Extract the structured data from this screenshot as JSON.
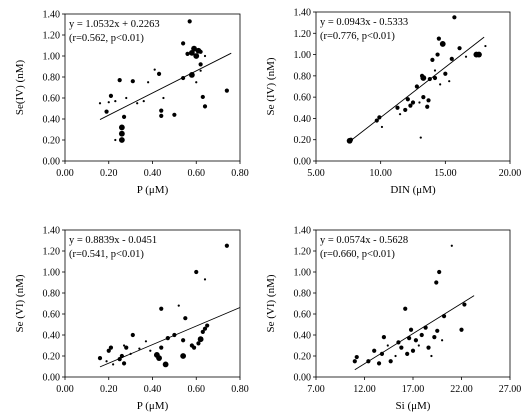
{
  "chart_data": [
    {
      "type": "scatter",
      "xlabel": "P (μM)",
      "ylabel": "Se(IV) (nM)",
      "xlim": [
        0.0,
        0.8
      ],
      "ylim": [
        0.0,
        1.4
      ],
      "xticks": [
        "0.00",
        "0.20",
        "0.40",
        "0.60",
        "0.80"
      ],
      "yticks": [
        "0.00",
        "0.20",
        "0.40",
        "0.60",
        "0.80",
        "1.00",
        "1.20",
        "1.40"
      ],
      "equation": "y = 1.0532x + 0.2263",
      "stats": "(r=0.562, p<0.01)",
      "trendline": {
        "slope": 1.0532,
        "intercept": 0.2263,
        "x": [
          0.16,
          0.76
        ]
      },
      "points": [
        {
          "x": 0.16,
          "y": 0.55,
          "s": 1
        },
        {
          "x": 0.19,
          "y": 0.47,
          "s": 2
        },
        {
          "x": 0.2,
          "y": 0.56,
          "s": 1
        },
        {
          "x": 0.21,
          "y": 0.62,
          "s": 2
        },
        {
          "x": 0.23,
          "y": 0.2,
          "s": 1
        },
        {
          "x": 0.23,
          "y": 0.57,
          "s": 1
        },
        {
          "x": 0.25,
          "y": 0.77,
          "s": 2
        },
        {
          "x": 0.26,
          "y": 0.2,
          "s": 3
        },
        {
          "x": 0.26,
          "y": 0.26,
          "s": 3
        },
        {
          "x": 0.26,
          "y": 0.32,
          "s": 3
        },
        {
          "x": 0.27,
          "y": 0.42,
          "s": 2
        },
        {
          "x": 0.28,
          "y": 0.6,
          "s": 1
        },
        {
          "x": 0.31,
          "y": 0.76,
          "s": 2
        },
        {
          "x": 0.33,
          "y": 0.55,
          "s": 1
        },
        {
          "x": 0.36,
          "y": 0.57,
          "s": 1
        },
        {
          "x": 0.38,
          "y": 0.75,
          "s": 1
        },
        {
          "x": 0.41,
          "y": 0.87,
          "s": 1
        },
        {
          "x": 0.43,
          "y": 0.83,
          "s": 2
        },
        {
          "x": 0.44,
          "y": 0.43,
          "s": 2
        },
        {
          "x": 0.44,
          "y": 0.48,
          "s": 2
        },
        {
          "x": 0.45,
          "y": 0.6,
          "s": 1
        },
        {
          "x": 0.5,
          "y": 1.15,
          "s": 2
        },
        {
          "x": 0.5,
          "y": 0.44,
          "s": 2
        },
        {
          "x": 0.54,
          "y": 1.12,
          "s": 2
        },
        {
          "x": 0.54,
          "y": 0.79,
          "s": 2
        },
        {
          "x": 0.56,
          "y": 1.02,
          "s": 2
        },
        {
          "x": 0.57,
          "y": 1.33,
          "s": 2
        },
        {
          "x": 0.58,
          "y": 0.82,
          "s": 3
        },
        {
          "x": 0.58,
          "y": 1.03,
          "s": 3
        },
        {
          "x": 0.59,
          "y": 1.07,
          "s": 3
        },
        {
          "x": 0.6,
          "y": 1.0,
          "s": 3
        },
        {
          "x": 0.6,
          "y": 0.75,
          "s": 1
        },
        {
          "x": 0.61,
          "y": 1.05,
          "s": 3
        },
        {
          "x": 0.62,
          "y": 1.04,
          "s": 2
        },
        {
          "x": 0.62,
          "y": 0.92,
          "s": 2
        },
        {
          "x": 0.62,
          "y": 0.86,
          "s": 1
        },
        {
          "x": 0.63,
          "y": 0.61,
          "s": 2
        },
        {
          "x": 0.64,
          "y": 0.52,
          "s": 2
        },
        {
          "x": 0.64,
          "y": 1.0,
          "s": 1
        },
        {
          "x": 0.74,
          "y": 0.67,
          "s": 2
        }
      ]
    },
    {
      "type": "scatter",
      "xlabel": "DIN (μM)",
      "ylabel": "Se (IV) (nM)",
      "xlim": [
        5.0,
        20.0
      ],
      "ylim": [
        0.0,
        1.4
      ],
      "xticks": [
        "5.00",
        "10.00",
        "15.00",
        "20.00"
      ],
      "yticks": [
        "0.00",
        "0.20",
        "0.40",
        "0.60",
        "0.80",
        "1.00",
        "1.20",
        "1.40"
      ],
      "equation": "y = 0.0943x - 0.5333",
      "stats": "(r=0.776, p<0.01)",
      "trendline": {
        "slope": 0.0943,
        "intercept": -0.5333,
        "x": [
          7.5,
          18.0
        ]
      },
      "points": [
        {
          "x": 7.6,
          "y": 0.19,
          "s": 3
        },
        {
          "x": 7.7,
          "y": 0.2,
          "s": 2
        },
        {
          "x": 9.7,
          "y": 0.38,
          "s": 2
        },
        {
          "x": 9.9,
          "y": 0.41,
          "s": 2
        },
        {
          "x": 10.1,
          "y": 0.32,
          "s": 1
        },
        {
          "x": 11.3,
          "y": 0.5,
          "s": 2
        },
        {
          "x": 11.5,
          "y": 0.44,
          "s": 1
        },
        {
          "x": 11.9,
          "y": 0.48,
          "s": 2
        },
        {
          "x": 12.1,
          "y": 0.58,
          "s": 2
        },
        {
          "x": 12.3,
          "y": 0.52,
          "s": 2
        },
        {
          "x": 12.5,
          "y": 0.55,
          "s": 2
        },
        {
          "x": 12.8,
          "y": 0.7,
          "s": 2
        },
        {
          "x": 13.0,
          "y": 0.55,
          "s": 1
        },
        {
          "x": 13.1,
          "y": 0.22,
          "s": 1
        },
        {
          "x": 13.2,
          "y": 0.8,
          "s": 2
        },
        {
          "x": 13.3,
          "y": 0.78,
          "s": 3
        },
        {
          "x": 13.3,
          "y": 0.6,
          "s": 2
        },
        {
          "x": 13.5,
          "y": 1.12,
          "s": 1
        },
        {
          "x": 13.6,
          "y": 0.51,
          "s": 2
        },
        {
          "x": 13.7,
          "y": 0.57,
          "s": 2
        },
        {
          "x": 13.8,
          "y": 0.77,
          "s": 2
        },
        {
          "x": 14.0,
          "y": 0.95,
          "s": 2
        },
        {
          "x": 14.2,
          "y": 0.85,
          "s": 1
        },
        {
          "x": 14.2,
          "y": 0.78,
          "s": 2
        },
        {
          "x": 14.4,
          "y": 1.0,
          "s": 2
        },
        {
          "x": 14.5,
          "y": 1.15,
          "s": 2
        },
        {
          "x": 14.6,
          "y": 0.72,
          "s": 1
        },
        {
          "x": 14.8,
          "y": 1.1,
          "s": 3
        },
        {
          "x": 15.0,
          "y": 0.82,
          "s": 2
        },
        {
          "x": 15.3,
          "y": 0.75,
          "s": 1
        },
        {
          "x": 15.5,
          "y": 0.96,
          "s": 2
        },
        {
          "x": 15.7,
          "y": 1.35,
          "s": 2
        },
        {
          "x": 16.1,
          "y": 1.06,
          "s": 2
        },
        {
          "x": 16.6,
          "y": 0.98,
          "s": 1
        },
        {
          "x": 17.4,
          "y": 1.0,
          "s": 3
        },
        {
          "x": 17.6,
          "y": 1.0,
          "s": 3
        },
        {
          "x": 18.1,
          "y": 1.08,
          "s": 1
        }
      ]
    },
    {
      "type": "scatter",
      "xlabel": "P (μM)",
      "ylabel": "Se (VI) (nM)",
      "xlim": [
        0.0,
        0.8
      ],
      "ylim": [
        0.0,
        1.4
      ],
      "xticks": [
        "0.00",
        "0.20",
        "0.40",
        "0.60",
        "0.80"
      ],
      "yticks": [
        "0.00",
        "0.20",
        "0.40",
        "0.60",
        "0.80",
        "1.00",
        "1.20",
        "1.40"
      ],
      "equation": "y = 0.8839x - 0.0451",
      "stats": "(r=0.541, p<0.01)",
      "trendline": {
        "slope": 0.8839,
        "intercept": -0.0451,
        "x": [
          0.16,
          0.8
        ]
      },
      "points": [
        {
          "x": 0.16,
          "y": 0.18,
          "s": 2
        },
        {
          "x": 0.19,
          "y": 0.15,
          "s": 1
        },
        {
          "x": 0.2,
          "y": 0.25,
          "s": 2
        },
        {
          "x": 0.21,
          "y": 0.28,
          "s": 2
        },
        {
          "x": 0.22,
          "y": 0.12,
          "s": 1
        },
        {
          "x": 0.25,
          "y": 0.17,
          "s": 2
        },
        {
          "x": 0.26,
          "y": 0.2,
          "s": 2
        },
        {
          "x": 0.27,
          "y": 0.13,
          "s": 2
        },
        {
          "x": 0.27,
          "y": 0.3,
          "s": 1
        },
        {
          "x": 0.28,
          "y": 0.28,
          "s": 2
        },
        {
          "x": 0.3,
          "y": 0.22,
          "s": 1
        },
        {
          "x": 0.31,
          "y": 0.4,
          "s": 2
        },
        {
          "x": 0.34,
          "y": 0.27,
          "s": 1
        },
        {
          "x": 0.37,
          "y": 0.34,
          "s": 1
        },
        {
          "x": 0.39,
          "y": 0.25,
          "s": 1
        },
        {
          "x": 0.42,
          "y": 0.21,
          "s": 3
        },
        {
          "x": 0.43,
          "y": 0.18,
          "s": 3
        },
        {
          "x": 0.44,
          "y": 0.65,
          "s": 2
        },
        {
          "x": 0.44,
          "y": 0.28,
          "s": 2
        },
        {
          "x": 0.46,
          "y": 0.12,
          "s": 3
        },
        {
          "x": 0.47,
          "y": 0.37,
          "s": 2
        },
        {
          "x": 0.5,
          "y": 0.4,
          "s": 2
        },
        {
          "x": 0.52,
          "y": 0.68,
          "s": 1
        },
        {
          "x": 0.54,
          "y": 0.2,
          "s": 3
        },
        {
          "x": 0.54,
          "y": 0.35,
          "s": 2
        },
        {
          "x": 0.55,
          "y": 0.56,
          "s": 2
        },
        {
          "x": 0.58,
          "y": 0.3,
          "s": 2
        },
        {
          "x": 0.59,
          "y": 0.28,
          "s": 2
        },
        {
          "x": 0.6,
          "y": 1.0,
          "s": 2
        },
        {
          "x": 0.61,
          "y": 0.32,
          "s": 2
        },
        {
          "x": 0.62,
          "y": 0.36,
          "s": 3
        },
        {
          "x": 0.63,
          "y": 0.43,
          "s": 2
        },
        {
          "x": 0.64,
          "y": 0.46,
          "s": 2
        },
        {
          "x": 0.64,
          "y": 0.93,
          "s": 1
        },
        {
          "x": 0.65,
          "y": 0.49,
          "s": 2
        },
        {
          "x": 0.74,
          "y": 1.25,
          "s": 2
        }
      ]
    },
    {
      "type": "scatter",
      "xlabel": "Si (μM)",
      "ylabel": "Se (VI) (nM)",
      "xlim": [
        7.0,
        27.0
      ],
      "ylim": [
        0.0,
        1.4
      ],
      "xticks": [
        "7.00",
        "12.00",
        "17.00",
        "22.00",
        "27.00"
      ],
      "yticks": [
        "0.00",
        "0.20",
        "0.40",
        "0.60",
        "0.80",
        "1.00",
        "1.20",
        "1.40"
      ],
      "equation": "y = 0.0574x - 0.5628",
      "stats": "(r=0.660, p<0.01)",
      "trendline": {
        "slope": 0.0574,
        "intercept": -0.5628,
        "x": [
          11.0,
          23.3
        ]
      },
      "points": [
        {
          "x": 11.0,
          "y": 0.15,
          "s": 2
        },
        {
          "x": 11.2,
          "y": 0.19,
          "s": 2
        },
        {
          "x": 12.4,
          "y": 0.15,
          "s": 2
        },
        {
          "x": 13.0,
          "y": 0.25,
          "s": 2
        },
        {
          "x": 13.5,
          "y": 0.13,
          "s": 2
        },
        {
          "x": 13.8,
          "y": 0.22,
          "s": 2
        },
        {
          "x": 14.0,
          "y": 0.38,
          "s": 2
        },
        {
          "x": 14.4,
          "y": 0.3,
          "s": 1
        },
        {
          "x": 14.7,
          "y": 0.15,
          "s": 2
        },
        {
          "x": 15.2,
          "y": 0.2,
          "s": 1
        },
        {
          "x": 15.5,
          "y": 0.33,
          "s": 2
        },
        {
          "x": 15.8,
          "y": 0.28,
          "s": 2
        },
        {
          "x": 16.2,
          "y": 0.65,
          "s": 2
        },
        {
          "x": 16.4,
          "y": 0.22,
          "s": 2
        },
        {
          "x": 16.6,
          "y": 0.37,
          "s": 2
        },
        {
          "x": 16.8,
          "y": 0.45,
          "s": 2
        },
        {
          "x": 17.0,
          "y": 0.25,
          "s": 2
        },
        {
          "x": 17.3,
          "y": 0.35,
          "s": 2
        },
        {
          "x": 17.6,
          "y": 0.3,
          "s": 1
        },
        {
          "x": 17.9,
          "y": 0.4,
          "s": 2
        },
        {
          "x": 18.3,
          "y": 0.47,
          "s": 2
        },
        {
          "x": 18.6,
          "y": 0.28,
          "s": 2
        },
        {
          "x": 18.9,
          "y": 0.2,
          "s": 1
        },
        {
          "x": 19.2,
          "y": 0.38,
          "s": 2
        },
        {
          "x": 19.4,
          "y": 0.9,
          "s": 2
        },
        {
          "x": 19.5,
          "y": 0.44,
          "s": 2
        },
        {
          "x": 19.7,
          "y": 1.0,
          "s": 2
        },
        {
          "x": 20.0,
          "y": 0.35,
          "s": 1
        },
        {
          "x": 20.2,
          "y": 0.58,
          "s": 2
        },
        {
          "x": 21.0,
          "y": 1.25,
          "s": 1
        },
        {
          "x": 22.0,
          "y": 0.45,
          "s": 2
        },
        {
          "x": 22.3,
          "y": 0.69,
          "s": 2
        }
      ]
    }
  ]
}
